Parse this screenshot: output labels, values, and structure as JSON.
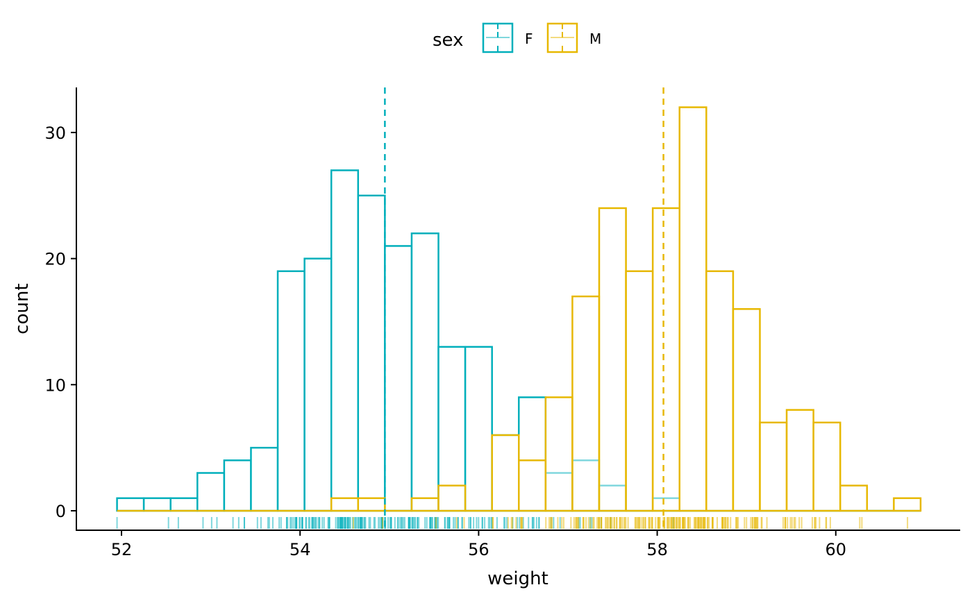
{
  "chart_data": {
    "type": "histogram",
    "title": "",
    "xlabel": "weight",
    "ylabel": "count",
    "xlim": [
      51.45,
      61.4
    ],
    "ylim": [
      -1.5,
      33.5
    ],
    "x_ticks": [
      "52",
      "54",
      "56",
      "58",
      "60"
    ],
    "x_tick_values": [
      52,
      54,
      56,
      58,
      60
    ],
    "y_ticks": [
      "0",
      "10",
      "20",
      "30"
    ],
    "y_tick_values": [
      0,
      10,
      20,
      30
    ],
    "grid": false,
    "legend": {
      "title": "sex",
      "position": "top",
      "entries": [
        "F",
        "M"
      ]
    },
    "bin_start": 51.95,
    "bin_width": 0.3,
    "series": [
      {
        "name": "F",
        "color": "#00AFBB",
        "mean": 54.95,
        "counts": [
          1,
          1,
          1,
          3,
          4,
          5,
          19,
          20,
          27,
          25,
          21,
          22,
          13,
          13,
          6,
          9,
          3,
          4,
          2,
          0,
          1,
          0,
          0,
          0,
          0,
          0,
          0,
          0,
          0,
          0
        ]
      },
      {
        "name": "M",
        "color": "#E7B800",
        "mean": 58.07,
        "counts": [
          0,
          0,
          0,
          0,
          0,
          0,
          0,
          0,
          1,
          1,
          0,
          1,
          2,
          0,
          6,
          4,
          9,
          17,
          24,
          19,
          24,
          32,
          19,
          16,
          7,
          8,
          7,
          2,
          0,
          1
        ]
      }
    ],
    "rug": true,
    "mean_lines": "dashed"
  }
}
